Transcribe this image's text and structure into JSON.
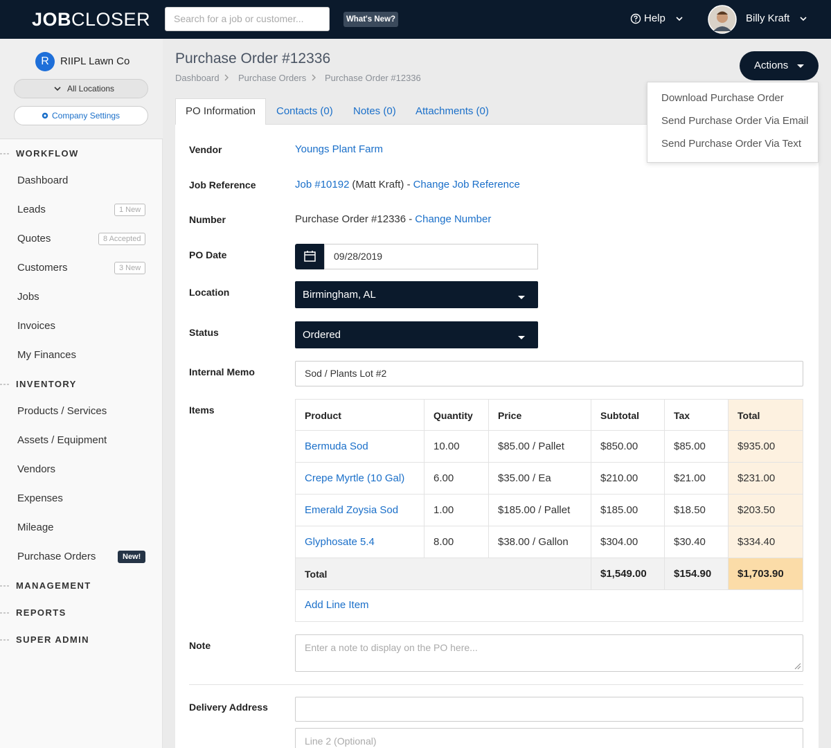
{
  "header": {
    "logo_bold": "JOB",
    "logo_light": "CLOSER",
    "search_placeholder": "Search for a job or customer...",
    "whats_new": "What's New?",
    "help": "Help",
    "user_name": "Billy Kraft"
  },
  "sidebar": {
    "company_initial": "R",
    "company_name": "RIIPL Lawn Co",
    "location_filter": "All Locations",
    "company_settings": "Company Settings",
    "sections": [
      {
        "title": "WORKFLOW",
        "items": [
          {
            "label": "Dashboard"
          },
          {
            "label": "Leads",
            "badge": "1 New"
          },
          {
            "label": "Quotes",
            "badge": "8 Accepted"
          },
          {
            "label": "Customers",
            "badge": "3 New"
          },
          {
            "label": "Jobs"
          },
          {
            "label": "Invoices"
          },
          {
            "label": "My Finances"
          }
        ]
      },
      {
        "title": "INVENTORY",
        "items": [
          {
            "label": "Products / Services"
          },
          {
            "label": "Assets / Equipment"
          },
          {
            "label": "Vendors"
          },
          {
            "label": "Expenses"
          },
          {
            "label": "Mileage"
          },
          {
            "label": "Purchase Orders",
            "badge": "New!"
          }
        ]
      },
      {
        "title": "MANAGEMENT"
      },
      {
        "title": "REPORTS"
      },
      {
        "title": "SUPER ADMIN"
      }
    ]
  },
  "page": {
    "title": "Purchase Order #12336",
    "breadcrumb": [
      "Dashboard",
      "Purchase Orders",
      "Purchase Order #12336"
    ],
    "actions_button": "Actions",
    "actions_menu": [
      "Download Purchase Order",
      "Send Purchase Order Via Email",
      "Send Purchase Order Via Text"
    ],
    "tabs": [
      "PO Information",
      "Contacts (0)",
      "Notes (0)",
      "Attachments (0)"
    ]
  },
  "form": {
    "vendor": {
      "label": "Vendor",
      "value": "Youngs Plant Farm"
    },
    "job_reference": {
      "label": "Job Reference",
      "job_link": "Job #10192",
      "customer": "(Matt Kraft) -",
      "change_link": "Change Job Reference"
    },
    "number": {
      "label": "Number",
      "value": "Purchase Order #12336 -",
      "change_link": "Change Number"
    },
    "po_date": {
      "label": "PO Date",
      "value": "09/28/2019"
    },
    "location": {
      "label": "Location",
      "value": "Birmingham, AL"
    },
    "status": {
      "label": "Status",
      "value": "Ordered"
    },
    "internal_memo": {
      "label": "Internal Memo",
      "value": "Sod / Plants Lot #2"
    },
    "note": {
      "label": "Note",
      "placeholder": "Enter a note to display on the PO here..."
    },
    "delivery_address": {
      "label": "Delivery Address",
      "line2_placeholder": "Line 2 (Optional)"
    }
  },
  "items_table": {
    "label": "Items",
    "columns": [
      "Product",
      "Quantity",
      "Price",
      "Subtotal",
      "Tax",
      "Total"
    ],
    "rows": [
      [
        "Bermuda Sod",
        "10.00",
        "$85.00 / Pallet",
        "$850.00",
        "$85.00",
        "$935.00"
      ],
      [
        "Crepe Myrtle (10 Gal)",
        "6.00",
        "$35.00 / Ea",
        "$210.00",
        "$21.00",
        "$231.00"
      ],
      [
        "Emerald Zoysia Sod",
        "1.00",
        "$185.00 / Pallet",
        "$185.00",
        "$18.50",
        "$203.50"
      ],
      [
        "Glyphosate 5.4",
        "8.00",
        "$38.00 / Gallon",
        "$304.00",
        "$30.40",
        "$334.40"
      ]
    ],
    "total_row": {
      "label": "Total",
      "subtotal": "$1,549.00",
      "tax": "$154.90",
      "total": "$1,703.90"
    },
    "add_line_item": "Add Line Item"
  }
}
